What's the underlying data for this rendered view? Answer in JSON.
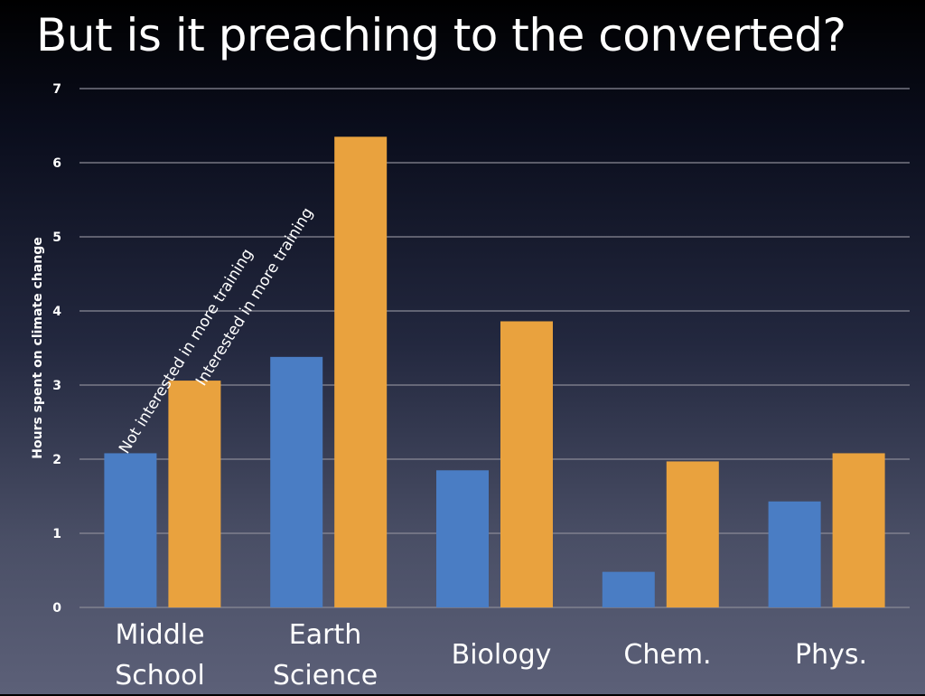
{
  "title": "But is it preaching to the converted?",
  "colors": {
    "series_1": "#4a7dc4",
    "series_2": "#e9a23e",
    "gridline": "#8a8a96"
  },
  "chart_data": {
    "type": "bar",
    "categories": [
      "Middle\nSchool",
      "Earth\nScience",
      "Biology",
      "Chem.",
      "Phys."
    ],
    "series": [
      {
        "name": "Not interested in more training",
        "values": [
          2.08,
          3.38,
          1.85,
          0.48,
          1.43
        ]
      },
      {
        "name": "Interested in more training",
        "values": [
          3.06,
          6.35,
          3.86,
          1.97,
          2.08
        ]
      }
    ],
    "xlabel": "",
    "ylabel": "Hours spent on climate change",
    "ylim": [
      0,
      7
    ],
    "yticks": [
      "0",
      "1",
      "2",
      "3",
      "4",
      "5",
      "6",
      "7"
    ],
    "grid": true,
    "legend": "rotated labels above first category bars"
  }
}
